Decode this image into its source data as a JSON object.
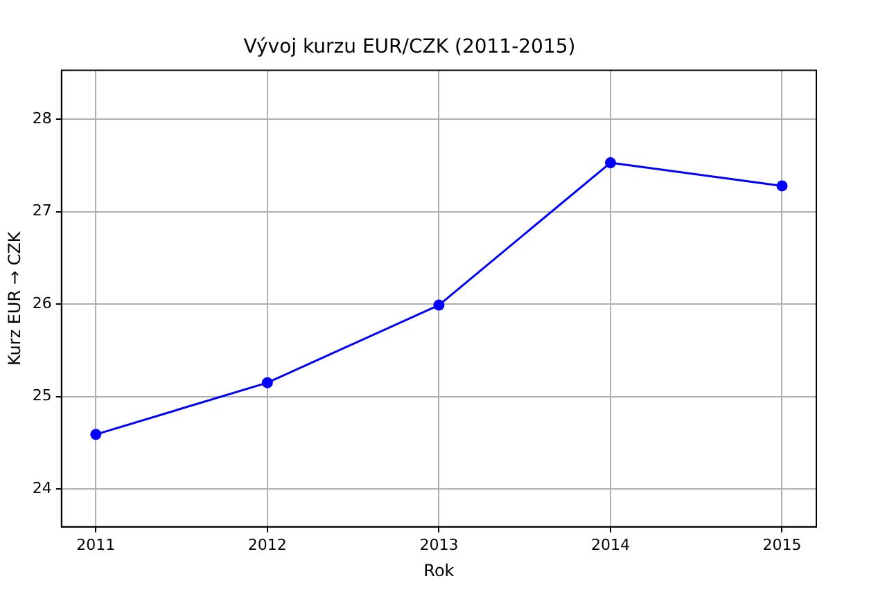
{
  "chart_data": {
    "type": "line",
    "title": "Vývoj kurzu EUR/CZK (2011-2015)",
    "xlabel": "Rok",
    "ylabel": "Kurz EUR → CZK",
    "x": [
      2011,
      2012,
      2013,
      2014,
      2015
    ],
    "series": [
      {
        "color": "#0000ff",
        "values": [
          24.59,
          25.15,
          25.99,
          27.53,
          27.28
        ]
      }
    ],
    "xlim": [
      2010.8,
      2015.2
    ],
    "xticks": [
      2011,
      2012,
      2013,
      2014,
      2015
    ],
    "ylim": [
      23.59,
      28.53
    ],
    "yticks": [
      24,
      25,
      26,
      27,
      28
    ],
    "grid": true,
    "marker": "circle",
    "line_style": "solid"
  }
}
